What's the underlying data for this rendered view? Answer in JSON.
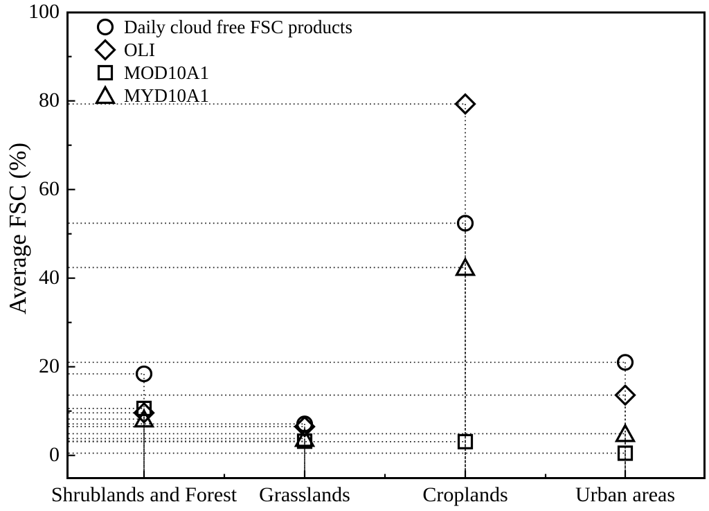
{
  "chart_data": {
    "type": "scatter",
    "title": "",
    "xlabel": "",
    "ylabel": "Average FSC (%)",
    "ylim": [
      -5,
      100
    ],
    "y_major_ticks": [
      0,
      20,
      40,
      60,
      80,
      100
    ],
    "y_minor_ticks": [
      10,
      30,
      50,
      70,
      90
    ],
    "grid": "dotted drop lines from each point to left axis and bottom axis",
    "legend_position": "top-left inside plot",
    "categories": [
      "Shrublands and Forest",
      "Grasslands",
      "Croplands",
      "Urban areas"
    ],
    "series": [
      {
        "name": "Daily cloud free FSC products",
        "marker": "circle",
        "values": [
          18.4,
          7.1,
          52.4,
          21.0
        ]
      },
      {
        "name": "OLI",
        "marker": "diamond",
        "values": [
          9.6,
          6.5,
          79.3,
          13.6
        ]
      },
      {
        "name": "MOD10A1",
        "marker": "square",
        "values": [
          10.6,
          3.2,
          3.1,
          0.5
        ]
      },
      {
        "name": "MYD10A1",
        "marker": "triangle",
        "values": [
          8.2,
          3.8,
          42.4,
          4.9
        ]
      }
    ],
    "colors": {
      "marker": "#000000",
      "background": "#ffffff",
      "text": "#000000",
      "dropline": "#222222"
    }
  }
}
